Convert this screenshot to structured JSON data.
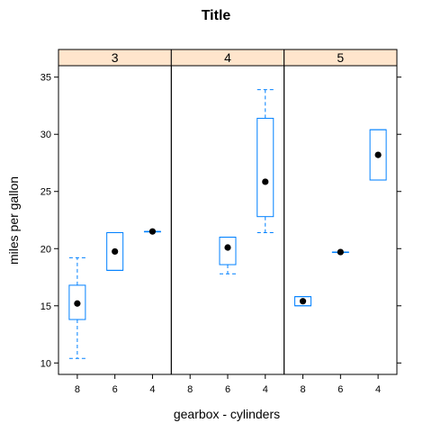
{
  "chart_data": {
    "type": "boxplot",
    "title": "Title",
    "xlabel": "gearbox - cylinders",
    "ylabel": "miles per gallon",
    "ylim": [
      9,
      36
    ],
    "yticks": [
      10,
      15,
      20,
      25,
      30,
      35
    ],
    "colors": {
      "strip_bg": "#ffe5cc",
      "box": "#0080ff",
      "median": "#000000",
      "frame": "#000000"
    },
    "panels": [
      {
        "strip": "3",
        "categories": [
          "8",
          "6",
          "4"
        ],
        "boxes": [
          {
            "category": "8",
            "whisker_low": 10.4,
            "q1": 13.8,
            "median": 15.2,
            "q3": 16.8,
            "whisker_high": 19.2
          },
          {
            "category": "6",
            "whisker_low": 18.1,
            "q1": 18.1,
            "median": 19.75,
            "q3": 21.4,
            "whisker_high": 21.4
          },
          {
            "category": "4",
            "whisker_low": 21.5,
            "q1": 21.5,
            "median": 21.5,
            "q3": 21.5,
            "whisker_high": 21.5
          }
        ]
      },
      {
        "strip": "4",
        "categories": [
          "8",
          "6",
          "4"
        ],
        "boxes": [
          {
            "category": "6",
            "whisker_low": 17.8,
            "q1": 18.6,
            "median": 20.1,
            "q3": 21.0,
            "whisker_high": 21.0
          },
          {
            "category": "4",
            "whisker_low": 21.4,
            "q1": 22.8,
            "median": 25.85,
            "q3": 31.4,
            "whisker_high": 33.9
          }
        ]
      },
      {
        "strip": "5",
        "categories": [
          "8",
          "6",
          "4"
        ],
        "boxes": [
          {
            "category": "8",
            "whisker_low": 15.0,
            "q1": 15.0,
            "median": 15.4,
            "q3": 15.8,
            "whisker_high": 15.8
          },
          {
            "category": "6",
            "whisker_low": 19.7,
            "q1": 19.7,
            "median": 19.7,
            "q3": 19.7,
            "whisker_high": 19.7
          },
          {
            "category": "4",
            "whisker_low": 26.0,
            "q1": 26.0,
            "median": 28.2,
            "q3": 30.4,
            "whisker_high": 30.4
          }
        ]
      }
    ]
  }
}
